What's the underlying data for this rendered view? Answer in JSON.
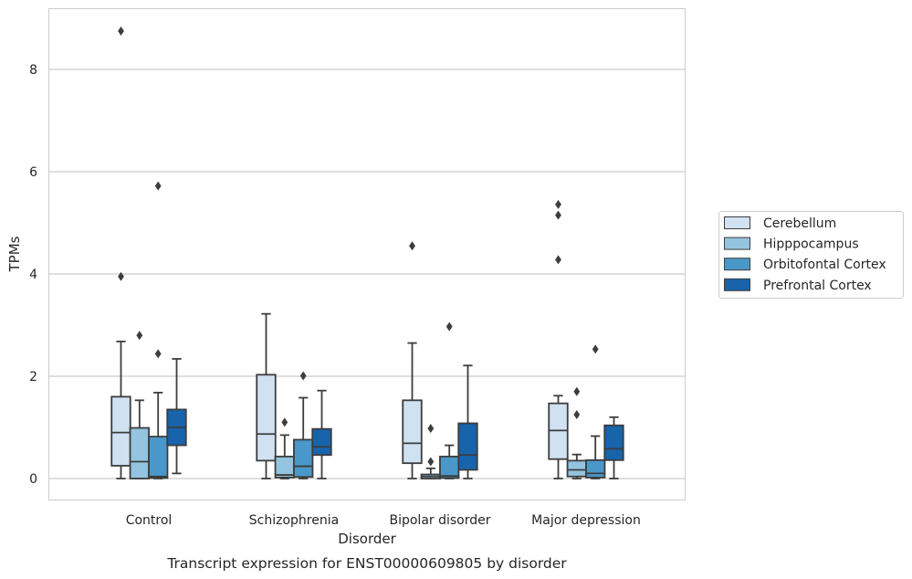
{
  "caption": "Transcript expression for ENST00000609805 by disorder",
  "colors": {
    "Cerebellum": "#d0e1f2",
    "Hipppocampus": "#94c4df",
    "Orbitofontal Cortex": "#4a98c9",
    "Prefrontal Cortex": "#1764ab",
    "grid": "#cccccc",
    "frame": "#cccccc",
    "stroke": "#3d3d3d"
  },
  "chart_data": {
    "type": "box",
    "title": "",
    "xlabel": "Disorder",
    "ylabel": "TPMs",
    "ylim": [
      -0.4,
      9.3
    ],
    "yticks": [
      0,
      2,
      4,
      6,
      8
    ],
    "grid": true,
    "legend_position": "right",
    "categories": [
      "Control",
      "Schizophrenia",
      "Bipolar disorder",
      "Major depression"
    ],
    "series": [
      {
        "name": "Cerebellum",
        "boxes": [
          {
            "whisker_low": 0.0,
            "q1": 0.25,
            "median": 0.9,
            "q3": 1.6,
            "whisker_high": 2.68,
            "outliers": [
              3.95,
              8.75
            ]
          },
          {
            "whisker_low": 0.0,
            "q1": 0.35,
            "median": 0.87,
            "q3": 2.03,
            "whisker_high": 3.22,
            "outliers": []
          },
          {
            "whisker_low": 0.0,
            "q1": 0.3,
            "median": 0.69,
            "q3": 1.53,
            "whisker_high": 2.65,
            "outliers": [
              4.55
            ]
          },
          {
            "whisker_low": 0.0,
            "q1": 0.38,
            "median": 0.94,
            "q3": 1.47,
            "whisker_high": 1.62,
            "outliers": [
              4.28,
              5.15,
              5.36
            ]
          }
        ]
      },
      {
        "name": "Hipppocampus",
        "boxes": [
          {
            "whisker_low": 0.0,
            "q1": 0.0,
            "median": 0.33,
            "q3": 0.99,
            "whisker_high": 1.53,
            "outliers": [
              2.8
            ]
          },
          {
            "whisker_low": 0.0,
            "q1": 0.02,
            "median": 0.07,
            "q3": 0.43,
            "whisker_high": 0.85,
            "outliers": [
              1.1
            ]
          },
          {
            "whisker_low": 0.0,
            "q1": 0.0,
            "median": 0.04,
            "q3": 0.08,
            "whisker_high": 0.2,
            "outliers": [
              0.33,
              0.98
            ]
          },
          {
            "whisker_low": 0.0,
            "q1": 0.04,
            "median": 0.17,
            "q3": 0.35,
            "whisker_high": 0.47,
            "outliers": [
              1.25,
              1.7
            ]
          }
        ]
      },
      {
        "name": "Orbitofontal Cortex",
        "boxes": [
          {
            "whisker_low": 0.0,
            "q1": 0.01,
            "median": 0.04,
            "q3": 0.82,
            "whisker_high": 1.68,
            "outliers": [
              2.44,
              5.72
            ]
          },
          {
            "whisker_low": 0.0,
            "q1": 0.03,
            "median": 0.24,
            "q3": 0.76,
            "whisker_high": 1.58,
            "outliers": [
              2.01
            ]
          },
          {
            "whisker_low": 0.0,
            "q1": 0.01,
            "median": 0.05,
            "q3": 0.43,
            "whisker_high": 0.65,
            "outliers": [
              2.97
            ]
          },
          {
            "whisker_low": 0.0,
            "q1": 0.02,
            "median": 0.1,
            "q3": 0.36,
            "whisker_high": 0.83,
            "outliers": [
              2.53
            ]
          }
        ]
      },
      {
        "name": "Prefrontal Cortex",
        "boxes": [
          {
            "whisker_low": 0.1,
            "q1": 0.65,
            "median": 1.0,
            "q3": 1.35,
            "whisker_high": 2.34,
            "outliers": []
          },
          {
            "whisker_low": 0.0,
            "q1": 0.46,
            "median": 0.62,
            "q3": 0.97,
            "whisker_high": 1.72,
            "outliers": []
          },
          {
            "whisker_low": 0.0,
            "q1": 0.17,
            "median": 0.46,
            "q3": 1.08,
            "whisker_high": 2.21,
            "outliers": []
          },
          {
            "whisker_low": 0.0,
            "q1": 0.36,
            "median": 0.58,
            "q3": 1.04,
            "whisker_high": 1.2,
            "outliers": []
          }
        ]
      }
    ]
  }
}
